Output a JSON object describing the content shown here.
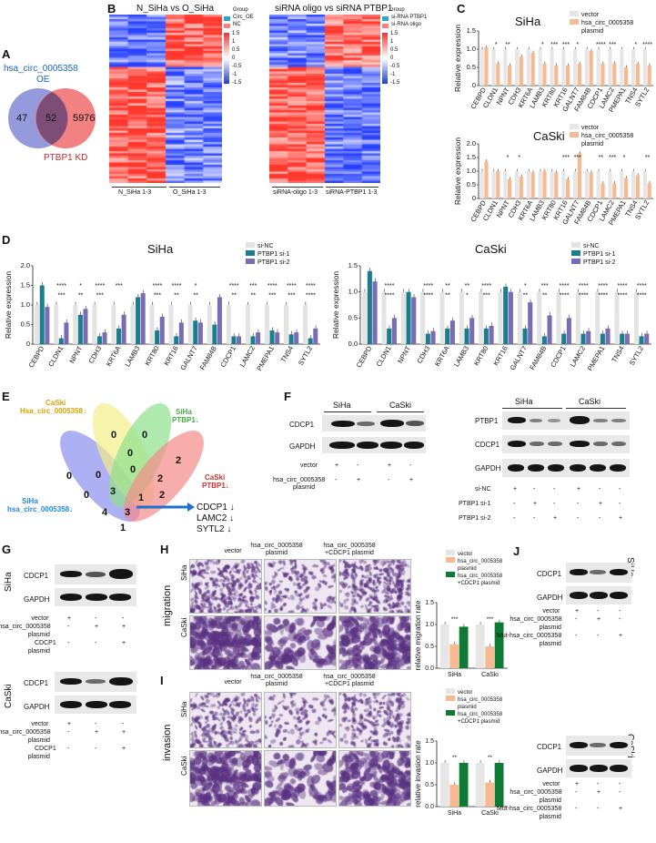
{
  "panels": {
    "A": "A",
    "B": "B",
    "C": "C",
    "D": "D",
    "E": "E",
    "F": "F",
    "G": "G",
    "H": "H",
    "I": "I",
    "J": "J"
  },
  "colors": {
    "vector": "#e6e6e6",
    "circ": "#f7b98f",
    "sinc": "#e3e3e3",
    "si1": "#1a7f8c",
    "si2": "#7a6bb5",
    "cdcp1": "#0f7a34"
  },
  "venn_a": {
    "left_label_1": "hsa_circ_0005358",
    "left_label_2": "OE",
    "right_label": "PTBP1 KD",
    "left_only": "47",
    "overlap": "52",
    "right_only": "5976"
  },
  "heatmap1": {
    "title": "N_SiHa vs O_SiHa",
    "legend_title": "Group",
    "legend_items": [
      "Circ_OE",
      "NC"
    ],
    "scale": [
      "1.5",
      "1",
      "0.5",
      "0",
      "-0.5",
      "-1",
      "-1.5"
    ],
    "bottom_labels": [
      "N_SiHa 1-3",
      "O_SiHa 1-3"
    ]
  },
  "heatmap2": {
    "title": "siRNA oligo vs siRNA PTBP1",
    "legend_title": "Group",
    "legend_items": [
      "si-RNA PTBP1",
      "si-RNA oligo"
    ],
    "scale": [
      "1.5",
      "1",
      "0.5",
      "0",
      "-0.5",
      "-1",
      "-1.5"
    ],
    "bottom_labels": [
      "siRNA-oligo 1-3",
      "siRNA-PTBP1 1-3"
    ]
  },
  "chart_data": [
    {
      "type": "bar",
      "panel": "C",
      "title": "SiHa",
      "ylabel": "Relative expression",
      "ylim": [
        0,
        1.5
      ],
      "yticks": [
        "0",
        "0.5",
        "1.0",
        "1.5"
      ],
      "categories": [
        "CEBPD",
        "CLDN1",
        "NPNT",
        "CDH3",
        "KRT6A",
        "LAMB3",
        "KRT80",
        "KRT16",
        "GALNT7",
        "FAM84B",
        "CDCP1",
        "LAMC2",
        "PMEPA1",
        "TNS4",
        "SYTL2"
      ],
      "series": [
        {
          "name": "vector",
          "values": [
            1,
            1,
            1,
            1,
            1,
            1,
            1,
            1,
            1,
            1,
            1,
            1,
            1,
            1,
            1
          ]
        },
        {
          "name": "hsa_circ_0005358 plasmid",
          "values": [
            1.05,
            0.6,
            0.55,
            0.8,
            0.9,
            0.6,
            0.55,
            0.55,
            0.6,
            0.95,
            0.6,
            0.6,
            0.5,
            0.6,
            0.55
          ]
        }
      ],
      "sig": [
        "",
        "*",
        "**",
        "",
        "",
        "*",
        "***",
        "***",
        "*",
        "",
        "****",
        "***",
        "",
        "*",
        "****"
      ],
      "legend": [
        "vector",
        "hsa_circ_0005358",
        "plasmid"
      ]
    },
    {
      "type": "bar",
      "panel": "C",
      "title": "CaSki",
      "ylabel": "Relative expression",
      "ylim": [
        0,
        2.0
      ],
      "yticks": [
        "0",
        "0.5",
        "1.0",
        "1.5",
        "2.0"
      ],
      "categories": [
        "CEBPD",
        "CLDN1",
        "NPNT",
        "CDH3",
        "KRT6A",
        "LAMB3",
        "KRT80",
        "KRT16",
        "GALNT7",
        "FAM84B",
        "CDCP1",
        "LAMC2",
        "PMEPA1",
        "TNS4",
        "SYTL2"
      ],
      "series": [
        {
          "name": "vector",
          "values": [
            1,
            1,
            1,
            1,
            1,
            1,
            1,
            1,
            1,
            1,
            1,
            1,
            1,
            1,
            1
          ]
        },
        {
          "name": "hsa_circ_0005358 plasmid",
          "values": [
            1.35,
            1.0,
            0.7,
            0.8,
            0.95,
            1.0,
            0.95,
            0.7,
            1.65,
            0.95,
            0.55,
            0.55,
            0.75,
            0.85,
            0.55
          ]
        }
      ],
      "sig": [
        "",
        "",
        "*",
        "*",
        "",
        "",
        "",
        "***",
        "***",
        "",
        "**",
        "***",
        "*",
        "",
        "**"
      ],
      "legend": [
        "vector",
        "hsa_circ_0005358",
        "plasmid"
      ]
    },
    {
      "type": "bar",
      "panel": "D",
      "title": "SiHa",
      "ylabel": "Relative expression",
      "ylim": [
        0,
        2.0
      ],
      "yticks": [
        "0",
        "0.5",
        "1.0",
        "1.5",
        "2.0"
      ],
      "categories": [
        "CEBPD",
        "CLDN1",
        "NPNT",
        "CDH3",
        "KRT6A",
        "LAMB3",
        "KRT80",
        "KRT16",
        "GALNT7",
        "FAM84B",
        "CDCP1",
        "LAMC2",
        "PMEPA1",
        "TNS4",
        "SYTL2"
      ],
      "series": [
        {
          "name": "si-NC",
          "values": [
            1,
            1,
            1,
            1,
            1,
            1,
            1,
            1,
            1,
            1,
            1,
            1,
            1,
            1,
            1
          ]
        },
        {
          "name": "PTBP1 si-1",
          "values": [
            1.5,
            0.15,
            0.75,
            0.2,
            0.4,
            1.2,
            0.35,
            0.2,
            0.6,
            0.5,
            0.2,
            0.2,
            0.35,
            0.25,
            0.15
          ]
        },
        {
          "name": "PTBP1 si-2",
          "values": [
            0.95,
            0.55,
            0.9,
            0.3,
            0.75,
            1.3,
            0.7,
            0.55,
            0.55,
            1.2,
            0.2,
            0.3,
            0.3,
            0.3,
            0.4
          ]
        }
      ],
      "sig": [
        "",
        "****",
        "*",
        "****",
        "***",
        "",
        "****",
        "****",
        "*",
        "",
        "****",
        "***",
        "****",
        "****",
        "****"
      ],
      "sig2": [
        "",
        "***",
        "**",
        "***",
        "",
        "",
        "***",
        "**",
        "**",
        "",
        "**",
        "**",
        "***",
        "***",
        "****"
      ],
      "legend": [
        "si-NC",
        "PTBP1 si-1",
        "PTBP1 si-2"
      ]
    },
    {
      "type": "bar",
      "panel": "D",
      "title": "CaSki",
      "ylabel": "Relative expression",
      "ylim": [
        0,
        1.5
      ],
      "yticks": [
        "0.0",
        "0.5",
        "1.0",
        "1.5"
      ],
      "categories": [
        "CEBPD",
        "CLDN1",
        "NPNT",
        "CDH3",
        "KRT6A",
        "LAMB3",
        "KRT80",
        "KRT16",
        "GALNT7",
        "FAM84B",
        "CDCP1",
        "LAMC2",
        "PMEPA1",
        "TNS4",
        "SYTL2"
      ],
      "series": [
        {
          "name": "si-NC",
          "values": [
            1,
            1,
            1,
            1,
            1,
            1,
            1,
            1,
            1,
            1,
            1,
            1,
            1,
            1,
            1
          ]
        },
        {
          "name": "PTBP1 si-1",
          "values": [
            1.4,
            0.3,
            1.0,
            0.2,
            0.3,
            0.3,
            0.3,
            1.1,
            0.3,
            0.15,
            0.2,
            0.2,
            0.2,
            0.2,
            0.15
          ]
        },
        {
          "name": "PTBP1 si-2",
          "values": [
            1.2,
            0.5,
            0.9,
            0.25,
            0.45,
            0.5,
            0.35,
            1.0,
            0.8,
            0.55,
            0.5,
            0.25,
            0.3,
            0.2,
            0.2
          ]
        }
      ],
      "sig": [
        "",
        "****",
        "",
        "****",
        "**",
        "**",
        "****",
        "",
        "*",
        "***",
        "****",
        "****",
        "****",
        "****",
        "****"
      ],
      "sig2": [
        "",
        "****",
        "",
        "****",
        "**",
        "*",
        "***",
        "",
        "**",
        "**",
        "****",
        "****",
        "****",
        "****",
        "****"
      ],
      "legend": [
        "si-NC",
        "PTBP1 si-1",
        "PTBP1 si-2"
      ]
    },
    {
      "type": "bar",
      "panel": "H",
      "ylabel": "relative migration rate",
      "ylim": [
        0,
        1.5
      ],
      "yticks": [
        "0.0",
        "0.5",
        "1.0",
        "1.5"
      ],
      "categories": [
        "SiHa",
        "CaSki"
      ],
      "series": [
        {
          "name": "vector",
          "values": [
            1.0,
            1.0
          ]
        },
        {
          "name": "hsa_circ_0005358 plasmid",
          "values": [
            0.55,
            0.5
          ]
        },
        {
          "name": "hsa_circ_0005358 +CDCP1 plasmid",
          "values": [
            0.95,
            1.05
          ]
        }
      ],
      "sig": [
        "***",
        "***",
        "***",
        "***",
        "***"
      ],
      "legend": [
        "vector",
        "hsa_circ_0005358",
        "plasmid",
        "hsa_circ_0005358",
        "+CDCP1  plasmid"
      ]
    },
    {
      "type": "bar",
      "panel": "I",
      "ylabel": "relative invasion rate",
      "ylim": [
        0,
        1.5
      ],
      "yticks": [
        "0.0",
        "0.5",
        "1.0",
        "1.5"
      ],
      "categories": [
        "SiHa",
        "CaSki"
      ],
      "series": [
        {
          "name": "vector",
          "values": [
            1.0,
            1.0
          ]
        },
        {
          "name": "hsa_circ_0005358 plasmid",
          "values": [
            0.5,
            0.55
          ]
        },
        {
          "name": "hsa_circ_0005358 +CDCP1 plasmid",
          "values": [
            1.0,
            1.0
          ]
        }
      ],
      "sig": [
        "**",
        "**",
        "**",
        "**",
        "**"
      ],
      "legend": [
        "vector",
        "hsa_circ_0005358",
        "plasmid",
        "hsa_circ_0005358",
        "+CDCP1  plasmid"
      ]
    }
  ],
  "venn_e": {
    "sets": [
      "CaSki",
      "Hsa_circ_0005358↓",
      "SiHa",
      "PTBP1↓",
      "CaSki",
      "PTBP1↓",
      "SiHa",
      "hsa_circ_0005358↓"
    ],
    "numbers": [
      "0",
      "0",
      "0",
      "2",
      "0",
      "2",
      "3",
      "2",
      "0",
      "4",
      "3",
      "0",
      "1",
      "1",
      "0"
    ],
    "genes": [
      "CDCP1 ↓",
      "LAMC2 ↓",
      "SYTL2 ↓"
    ]
  },
  "blot_f1": {
    "cells": [
      "SiHa",
      "CaSki"
    ],
    "proteins": [
      "CDCP1",
      "GAPDH"
    ],
    "rows": [
      {
        "label": "vector",
        "marks": [
          "+",
          "-",
          "+",
          "-"
        ]
      },
      {
        "label": "hsa_circ_0005358",
        "marks": [
          "-",
          "+",
          "-",
          "+"
        ]
      }
    ],
    "row2_extra": "plasmid"
  },
  "blot_f2": {
    "cells": [
      "SiHa",
      "CaSki"
    ],
    "proteins": [
      "PTBP1",
      "CDCP1",
      "GAPDH"
    ],
    "rows": [
      {
        "label": "si-NC",
        "marks": [
          "+",
          "-",
          "-",
          "+",
          "-",
          "-"
        ]
      },
      {
        "label": "PTBP1 si-1",
        "marks": [
          "-",
          "+",
          "-",
          "-",
          "+",
          "-"
        ]
      },
      {
        "label": "PTBP1 si-2",
        "marks": [
          "-",
          "-",
          "+",
          "-",
          "-",
          "+"
        ]
      }
    ]
  },
  "blot_g": {
    "cells": [
      "SiHa",
      "CaSki"
    ],
    "proteins": [
      "CDCP1",
      "GAPDH"
    ],
    "rows": [
      {
        "label": "vector",
        "marks": [
          "+",
          "-",
          "-"
        ]
      },
      {
        "label": "hsa_circ_0005358",
        "marks": [
          "-",
          "+",
          "+"
        ]
      },
      {
        "label": "plasmid",
        "marks": [
          "",
          "",
          ""
        ]
      },
      {
        "label": "CDCP1",
        "marks": [
          "-",
          "-",
          "+"
        ]
      },
      {
        "label": "plasmid",
        "marks": [
          "",
          "",
          ""
        ]
      }
    ]
  },
  "panel_h": {
    "side": "migration",
    "cols": [
      "vector",
      "hsa_circ_0005358\nplasmid",
      "hsa_circ_0005358\n+CDCP1  plasmid"
    ],
    "col1a": "hsa_circ_0005358",
    "col1b": "plasmid",
    "col2a": "hsa_circ_0005358",
    "col2b": "+CDCP1  plasmid",
    "rows": [
      "SiHa",
      "CaSki"
    ]
  },
  "panel_i": {
    "side": "invasion",
    "col1a": "hsa_circ_0005358",
    "col1b": "plasmid",
    "col2a": "hsa_circ_0005358",
    "col2b": "+CDCP1  plasmid",
    "rows": [
      "SiHa",
      "CaSki"
    ]
  },
  "blot_j": {
    "cells": [
      "SiHa",
      "CaSki"
    ],
    "proteins": [
      "CDCP1",
      "GAPDH"
    ],
    "rows": [
      {
        "label": "vector",
        "marks": [
          "+",
          "-",
          "-"
        ]
      },
      {
        "label": "hsa_circ_0005358",
        "marks": [
          "-",
          "+",
          "-"
        ]
      },
      {
        "label": "plasmid",
        "marks": [
          "",
          "",
          ""
        ]
      },
      {
        "label": "Mut-hsa_circ_0005358",
        "marks": [
          "-",
          "-",
          "+"
        ]
      },
      {
        "label": "plasmid",
        "marks": [
          "",
          "",
          ""
        ]
      }
    ]
  }
}
